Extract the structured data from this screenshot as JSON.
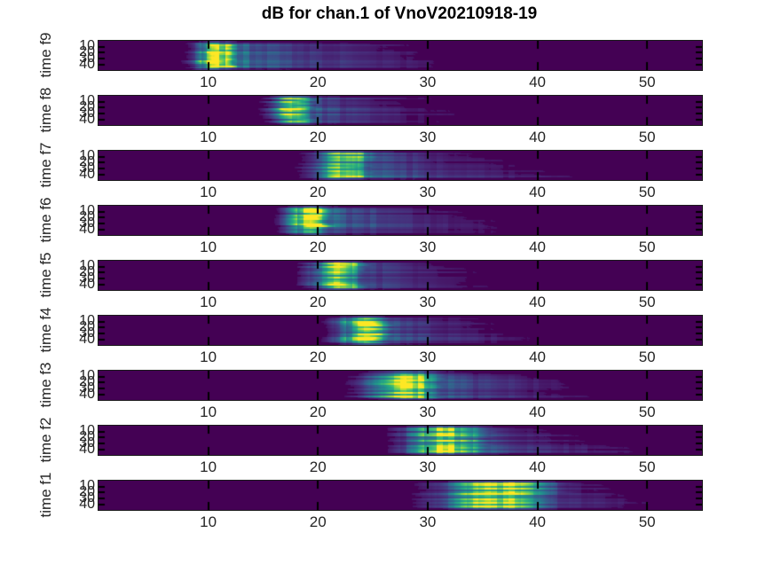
{
  "figure": {
    "title": "dB for chan.1 of VnoV20210918-19"
  },
  "chart_data": {
    "type": "heatmap",
    "title": "dB for chan.1 of VnoV20210918-19",
    "colormap": "viridis",
    "legend": "none",
    "grid": false,
    "background_hex": "#440154",
    "peak_hex": "#fde725",
    "axis_text_hex": "#262626",
    "x_range": [
      0,
      55
    ],
    "y_range": [
      0.5,
      48.5
    ],
    "x_ticks": [
      10,
      20,
      30,
      40,
      50
    ],
    "y_ticks": [
      10,
      20,
      30,
      40
    ],
    "subplots": [
      {
        "ylabel": "time f9",
        "event_center_s": 10.9,
        "event_sigma_s": 1.1,
        "tail_end_s": 26,
        "tail_skew_s": 2,
        "peak_norm": 1.0,
        "seed": 1
      },
      {
        "ylabel": "time f8",
        "event_center_s": 18.0,
        "event_sigma_s": 1.1,
        "tail_end_s": 28,
        "tail_skew_s": 2,
        "peak_norm": 1.0,
        "seed": 2
      },
      {
        "ylabel": "time f7",
        "event_center_s": 22.3,
        "event_sigma_s": 1.6,
        "tail_end_s": 36,
        "tail_skew_s": 4,
        "peak_norm": 1.0,
        "seed": 3
      },
      {
        "ylabel": "time f6",
        "event_center_s": 19.4,
        "event_sigma_s": 1.2,
        "tail_end_s": 32,
        "tail_skew_s": 4,
        "peak_norm": 1.0,
        "seed": 4
      },
      {
        "ylabel": "time f5",
        "event_center_s": 22.0,
        "event_sigma_s": 1.4,
        "tail_end_s": 31,
        "tail_skew_s": 2,
        "peak_norm": 1.0,
        "seed": 5
      },
      {
        "ylabel": "time f4",
        "event_center_s": 24.2,
        "event_sigma_s": 1.4,
        "tail_end_s": 34,
        "tail_skew_s": 3,
        "peak_norm": 1.0,
        "seed": 6
      },
      {
        "ylabel": "time f3",
        "event_center_s": 28.0,
        "event_sigma_s": 1.9,
        "tail_end_s": 39,
        "tail_skew_s": 3,
        "peak_norm": 1.0,
        "seed": 7
      },
      {
        "ylabel": "time f2",
        "event_center_s": 31.8,
        "event_sigma_s": 2.1,
        "tail_end_s": 42,
        "tail_skew_s": 5,
        "peak_norm": 1.0,
        "seed": 8
      },
      {
        "ylabel": "time f1",
        "event_center_s": 36.3,
        "event_sigma_s": 2.8,
        "tail_end_s": 45,
        "tail_skew_s": 3,
        "peak_norm": 1.0,
        "seed": 9
      }
    ]
  }
}
